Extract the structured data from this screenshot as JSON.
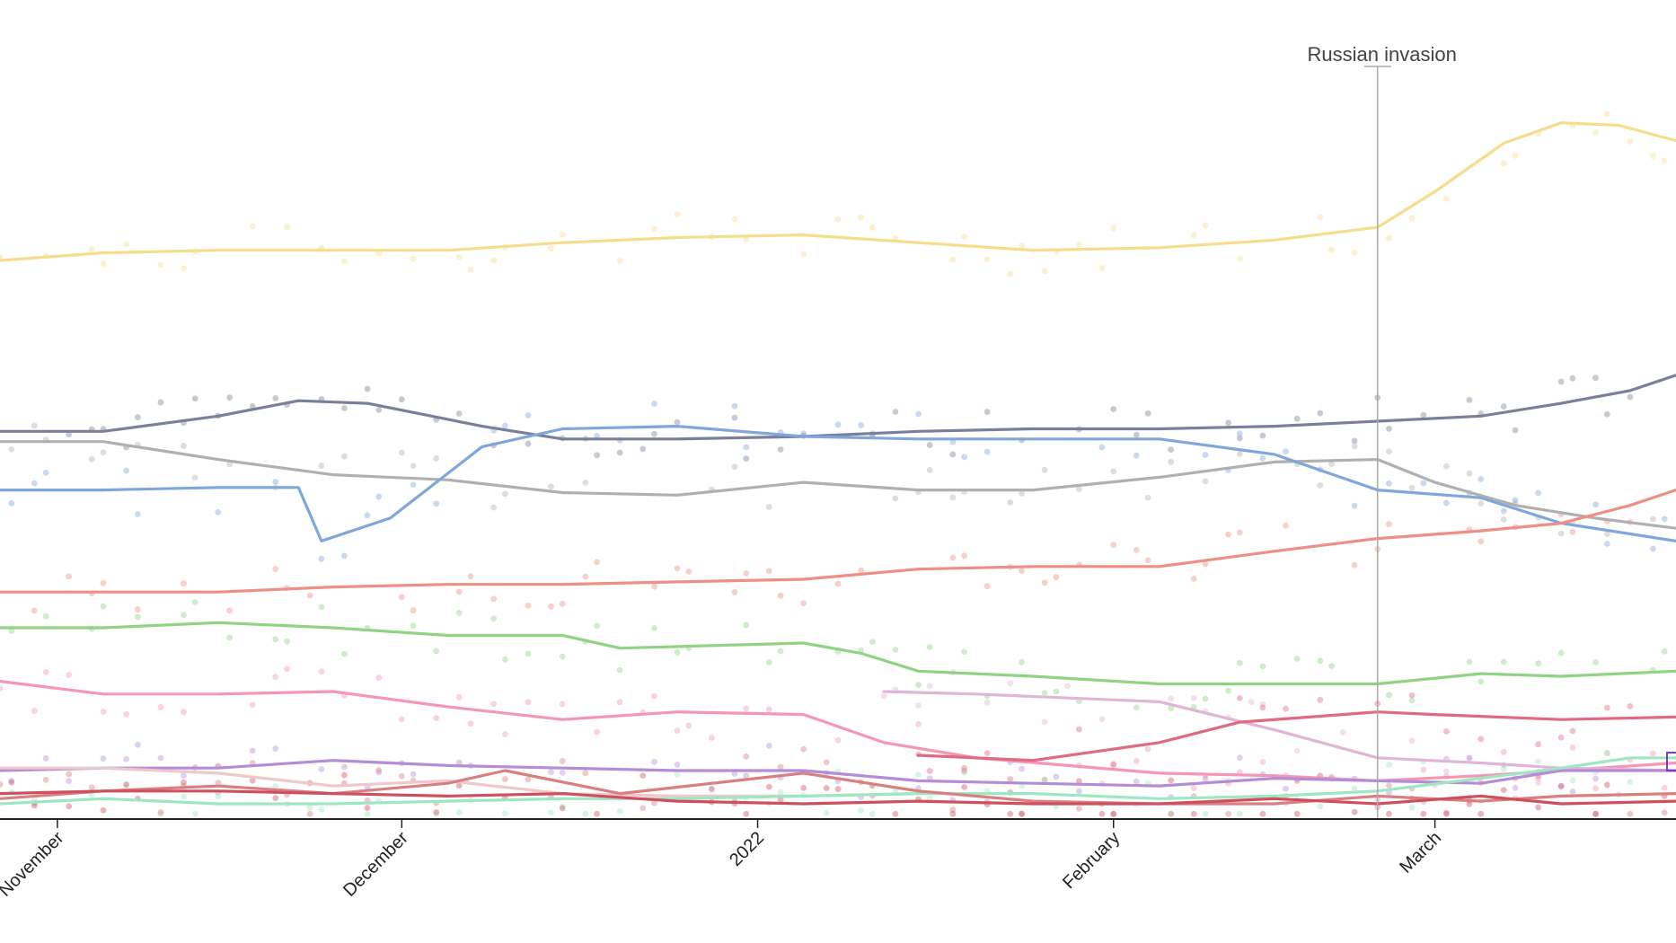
{
  "chart_data": {
    "type": "line",
    "title": "",
    "xlabel": "",
    "ylabel": "",
    "x_range": [
      "2021-10-27",
      "2022-03-22"
    ],
    "y_range": [
      0,
      30
    ],
    "grid": false,
    "legend": "none",
    "x_ticks": [
      {
        "date": "2021-11-01",
        "label": "November"
      },
      {
        "date": "2021-12-01",
        "label": "December"
      },
      {
        "date": "2022-01-01",
        "label": "2022"
      },
      {
        "date": "2022-02-01",
        "label": "February"
      },
      {
        "date": "2022-03-01",
        "label": "March"
      }
    ],
    "annotations": [
      {
        "date": "2022-02-24",
        "label": "Russian invasion"
      }
    ],
    "series": [
      {
        "color": "#f5dd8b",
        "dots": true,
        "points": [
          [
            "2021-10-27",
            21.9
          ],
          [
            "2021-11-05",
            22.2
          ],
          [
            "2021-11-15",
            22.3
          ],
          [
            "2021-11-25",
            22.3
          ],
          [
            "2021-12-05",
            22.3
          ],
          [
            "2021-12-15",
            22.6
          ],
          [
            "2021-12-25",
            22.8
          ],
          [
            "2022-01-05",
            22.9
          ],
          [
            "2022-01-15",
            22.6
          ],
          [
            "2022-01-25",
            22.3
          ],
          [
            "2022-02-05",
            22.4
          ],
          [
            "2022-02-15",
            22.7
          ],
          [
            "2022-02-24",
            23.2
          ],
          [
            "2022-03-01",
            24.6
          ],
          [
            "2022-03-07",
            26.5
          ],
          [
            "2022-03-12",
            27.3
          ],
          [
            "2022-03-17",
            27.2
          ],
          [
            "2022-03-22",
            26.6
          ]
        ]
      },
      {
        "color": "#7a7f9c",
        "dots": true,
        "points": [
          [
            "2021-10-27",
            15.2
          ],
          [
            "2021-11-05",
            15.2
          ],
          [
            "2021-11-15",
            15.8
          ],
          [
            "2021-11-22",
            16.4
          ],
          [
            "2021-11-28",
            16.3
          ],
          [
            "2021-12-08",
            15.4
          ],
          [
            "2021-12-15",
            14.9
          ],
          [
            "2021-12-25",
            14.9
          ],
          [
            "2022-01-05",
            15.0
          ],
          [
            "2022-01-15",
            15.2
          ],
          [
            "2022-01-25",
            15.3
          ],
          [
            "2022-02-05",
            15.3
          ],
          [
            "2022-02-15",
            15.4
          ],
          [
            "2022-02-24",
            15.6
          ],
          [
            "2022-03-05",
            15.8
          ],
          [
            "2022-03-12",
            16.3
          ],
          [
            "2022-03-18",
            16.8
          ],
          [
            "2022-03-22",
            17.4
          ]
        ]
      },
      {
        "color": "#b0b0b0",
        "dots": true,
        "points": [
          [
            "2021-10-27",
            14.8
          ],
          [
            "2021-11-05",
            14.8
          ],
          [
            "2021-11-15",
            14.1
          ],
          [
            "2021-11-25",
            13.5
          ],
          [
            "2021-12-05",
            13.3
          ],
          [
            "2021-12-15",
            12.8
          ],
          [
            "2021-12-25",
            12.7
          ],
          [
            "2022-01-05",
            13.2
          ],
          [
            "2022-01-15",
            12.9
          ],
          [
            "2022-01-25",
            12.9
          ],
          [
            "2022-02-05",
            13.4
          ],
          [
            "2022-02-15",
            14.0
          ],
          [
            "2022-02-24",
            14.1
          ],
          [
            "2022-03-01",
            13.2
          ],
          [
            "2022-03-08",
            12.3
          ],
          [
            "2022-03-15",
            11.8
          ],
          [
            "2022-03-22",
            11.4
          ]
        ]
      },
      {
        "color": "#7fa7dc",
        "dots": true,
        "points": [
          [
            "2021-10-27",
            12.9
          ],
          [
            "2021-11-05",
            12.9
          ],
          [
            "2021-11-15",
            13.0
          ],
          [
            "2021-11-22",
            13.0
          ],
          [
            "2021-11-24",
            10.9
          ],
          [
            "2021-11-30",
            11.8
          ],
          [
            "2021-12-08",
            14.6
          ],
          [
            "2021-12-15",
            15.3
          ],
          [
            "2021-12-25",
            15.4
          ],
          [
            "2022-01-05",
            15.0
          ],
          [
            "2022-01-15",
            14.9
          ],
          [
            "2022-01-25",
            14.9
          ],
          [
            "2022-02-05",
            14.9
          ],
          [
            "2022-02-15",
            14.3
          ],
          [
            "2022-02-24",
            12.9
          ],
          [
            "2022-03-05",
            12.6
          ],
          [
            "2022-03-12",
            11.6
          ],
          [
            "2022-03-22",
            10.9
          ]
        ]
      },
      {
        "color": "#ee8e84",
        "dots": true,
        "points": [
          [
            "2021-10-27",
            8.9
          ],
          [
            "2021-11-05",
            8.9
          ],
          [
            "2021-11-15",
            8.9
          ],
          [
            "2021-11-25",
            9.1
          ],
          [
            "2021-12-05",
            9.2
          ],
          [
            "2021-12-15",
            9.2
          ],
          [
            "2021-12-25",
            9.3
          ],
          [
            "2022-01-05",
            9.4
          ],
          [
            "2022-01-15",
            9.8
          ],
          [
            "2022-01-25",
            9.9
          ],
          [
            "2022-02-05",
            9.9
          ],
          [
            "2022-02-15",
            10.5
          ],
          [
            "2022-02-24",
            11.0
          ],
          [
            "2022-03-05",
            11.3
          ],
          [
            "2022-03-12",
            11.6
          ],
          [
            "2022-03-18",
            12.3
          ],
          [
            "2022-03-22",
            12.9
          ]
        ]
      },
      {
        "color": "#8fd383",
        "dots": true,
        "points": [
          [
            "2021-10-27",
            7.5
          ],
          [
            "2021-11-05",
            7.5
          ],
          [
            "2021-11-15",
            7.7
          ],
          [
            "2021-11-25",
            7.5
          ],
          [
            "2021-12-05",
            7.2
          ],
          [
            "2021-12-15",
            7.2
          ],
          [
            "2021-12-20",
            6.7
          ],
          [
            "2022-01-05",
            6.9
          ],
          [
            "2022-01-10",
            6.5
          ],
          [
            "2022-01-15",
            5.8
          ],
          [
            "2022-01-25",
            5.6
          ],
          [
            "2022-02-05",
            5.3
          ],
          [
            "2022-02-15",
            5.3
          ],
          [
            "2022-02-24",
            5.3
          ],
          [
            "2022-03-05",
            5.7
          ],
          [
            "2022-03-12",
            5.6
          ],
          [
            "2022-03-22",
            5.8
          ]
        ]
      },
      {
        "color": "#f597b2",
        "dots": true,
        "points": [
          [
            "2021-10-27",
            5.4
          ],
          [
            "2021-11-05",
            4.9
          ],
          [
            "2021-11-15",
            4.9
          ],
          [
            "2021-11-25",
            5.0
          ],
          [
            "2021-12-05",
            4.4
          ],
          [
            "2021-12-15",
            3.9
          ],
          [
            "2021-12-25",
            4.2
          ],
          [
            "2022-01-05",
            4.1
          ],
          [
            "2022-01-12",
            3.0
          ],
          [
            "2022-01-20",
            2.4
          ],
          [
            "2022-02-05",
            1.8
          ],
          [
            "2022-02-15",
            1.7
          ],
          [
            "2022-02-24",
            1.5
          ],
          [
            "2022-03-05",
            1.7
          ],
          [
            "2022-03-12",
            1.9
          ],
          [
            "2022-03-22",
            2.2
          ]
        ]
      },
      {
        "color": "#e0b5d8",
        "dots": true,
        "points": [
          [
            "2022-01-12",
            5.0
          ],
          [
            "2022-01-20",
            4.9
          ],
          [
            "2022-02-05",
            4.6
          ],
          [
            "2022-02-15",
            3.5
          ],
          [
            "2022-02-24",
            2.4
          ],
          [
            "2022-03-05",
            2.2
          ],
          [
            "2022-03-12",
            2.0
          ],
          [
            "2022-03-22",
            1.9
          ]
        ]
      },
      {
        "color": "#e06a7f",
        "dots": true,
        "points": [
          [
            "2022-01-15",
            2.5
          ],
          [
            "2022-01-25",
            2.3
          ],
          [
            "2022-02-05",
            3.0
          ],
          [
            "2022-02-12",
            3.8
          ],
          [
            "2022-02-24",
            4.2
          ],
          [
            "2022-03-01",
            4.1
          ],
          [
            "2022-03-12",
            3.9
          ],
          [
            "2022-03-22",
            4.0
          ]
        ]
      },
      {
        "color": "#b58cd8",
        "dots": true,
        "points": [
          [
            "2021-10-27",
            1.9
          ],
          [
            "2021-11-05",
            2.0
          ],
          [
            "2021-11-15",
            2.0
          ],
          [
            "2021-11-25",
            2.3
          ],
          [
            "2021-12-05",
            2.1
          ],
          [
            "2021-12-15",
            2.0
          ],
          [
            "2021-12-25",
            1.9
          ],
          [
            "2022-01-05",
            1.9
          ],
          [
            "2022-01-15",
            1.5
          ],
          [
            "2022-01-25",
            1.4
          ],
          [
            "2022-02-05",
            1.3
          ],
          [
            "2022-02-15",
            1.6
          ],
          [
            "2022-02-24",
            1.5
          ],
          [
            "2022-03-05",
            1.4
          ],
          [
            "2022-03-12",
            1.9
          ],
          [
            "2022-03-22",
            1.9
          ]
        ]
      },
      {
        "color": "#efc8cc",
        "dots": false,
        "points": [
          [
            "2021-10-27",
            2.0
          ],
          [
            "2021-11-05",
            2.0
          ],
          [
            "2021-11-15",
            1.8
          ],
          [
            "2021-11-25",
            1.3
          ],
          [
            "2021-12-05",
            1.5
          ],
          [
            "2021-12-15",
            1.0
          ],
          [
            "2021-12-25",
            0.9
          ],
          [
            "2022-01-05",
            0.9
          ],
          [
            "2022-01-15",
            1.0
          ]
        ]
      },
      {
        "color": "#9de8c2",
        "dots": true,
        "points": [
          [
            "2021-10-27",
            0.6
          ],
          [
            "2021-11-05",
            0.8
          ],
          [
            "2021-11-15",
            0.6
          ],
          [
            "2021-11-25",
            0.6
          ],
          [
            "2021-12-05",
            0.7
          ],
          [
            "2021-12-15",
            0.8
          ],
          [
            "2021-12-25",
            0.8
          ],
          [
            "2022-01-05",
            0.9
          ],
          [
            "2022-01-15",
            1.0
          ],
          [
            "2022-01-25",
            1.0
          ],
          [
            "2022-02-05",
            0.8
          ],
          [
            "2022-02-15",
            0.9
          ],
          [
            "2022-02-24",
            1.1
          ],
          [
            "2022-03-05",
            1.6
          ],
          [
            "2022-03-12",
            2.0
          ],
          [
            "2022-03-18",
            2.4
          ],
          [
            "2022-03-22",
            2.4
          ]
        ]
      },
      {
        "color": "#d97f7f",
        "dots": true,
        "points": [
          [
            "2021-10-27",
            0.8
          ],
          [
            "2021-11-05",
            1.1
          ],
          [
            "2021-11-15",
            1.3
          ],
          [
            "2021-11-25",
            1.0
          ],
          [
            "2021-12-05",
            1.4
          ],
          [
            "2021-12-10",
            1.9
          ],
          [
            "2021-12-20",
            1.0
          ],
          [
            "2022-01-05",
            1.8
          ],
          [
            "2022-01-15",
            1.1
          ],
          [
            "2022-01-25",
            0.7
          ],
          [
            "2022-02-05",
            0.6
          ],
          [
            "2022-02-15",
            0.6
          ],
          [
            "2022-02-24",
            0.9
          ],
          [
            "2022-03-05",
            0.7
          ],
          [
            "2022-03-12",
            0.9
          ],
          [
            "2022-03-22",
            1.0
          ]
        ]
      },
      {
        "color": "#cf4f5f",
        "dots": true,
        "points": [
          [
            "2021-10-27",
            1.0
          ],
          [
            "2021-11-05",
            1.1
          ],
          [
            "2021-11-15",
            1.1
          ],
          [
            "2021-11-25",
            1.0
          ],
          [
            "2021-12-05",
            0.9
          ],
          [
            "2021-12-15",
            1.0
          ],
          [
            "2021-12-25",
            0.7
          ],
          [
            "2022-01-05",
            0.6
          ],
          [
            "2022-01-15",
            0.7
          ],
          [
            "2022-01-25",
            0.6
          ],
          [
            "2022-02-05",
            0.6
          ],
          [
            "2022-02-15",
            0.8
          ],
          [
            "2022-02-24",
            0.6
          ],
          [
            "2022-03-05",
            0.9
          ],
          [
            "2022-03-12",
            0.6
          ],
          [
            "2022-03-22",
            0.7
          ]
        ]
      }
    ]
  }
}
